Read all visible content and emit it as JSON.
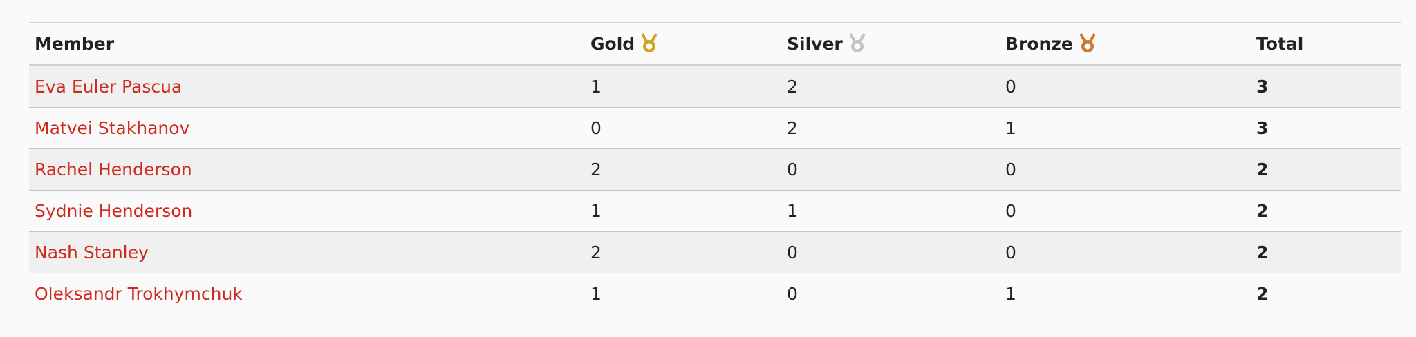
{
  "table": {
    "headers": [
      "Member",
      "Gold",
      "Silver",
      "Bronze",
      "Total"
    ],
    "rows": [
      [
        "Eva Euler Pascua",
        1,
        2,
        0,
        3
      ],
      [
        "Matvei Stakhanov",
        0,
        2,
        1,
        3
      ],
      [
        "Rachel Henderson",
        2,
        0,
        0,
        2
      ],
      [
        "Sydnie Henderson",
        1,
        1,
        0,
        2
      ],
      [
        "Nash Stanley",
        2,
        0,
        0,
        2
      ],
      [
        "Oleksandr Trokhymchuk",
        1,
        0,
        1,
        2
      ]
    ]
  }
}
